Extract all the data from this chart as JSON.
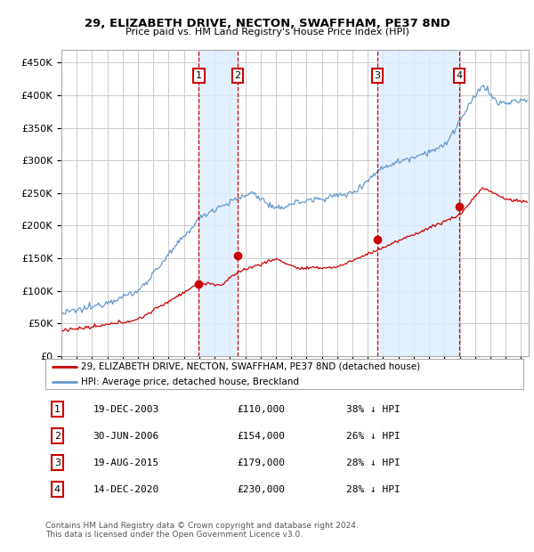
{
  "title1": "29, ELIZABETH DRIVE, NECTON, SWAFFHAM, PE37 8ND",
  "title2": "Price paid vs. HM Land Registry's House Price Index (HPI)",
  "ylabel_ticks": [
    "£0",
    "£50K",
    "£100K",
    "£150K",
    "£200K",
    "£250K",
    "£300K",
    "£350K",
    "£400K",
    "£450K"
  ],
  "ytick_vals": [
    0,
    50000,
    100000,
    150000,
    200000,
    250000,
    300000,
    350000,
    400000,
    450000
  ],
  "ylim": [
    0,
    470000
  ],
  "xlim_start": 1995.0,
  "xlim_end": 2025.5,
  "legend_line1": "29, ELIZABETH DRIVE, NECTON, SWAFFHAM, PE37 8ND (detached house)",
  "legend_line2": "HPI: Average price, detached house, Breckland",
  "transactions": [
    {
      "num": 1,
      "date": "19-DEC-2003",
      "price": 110000,
      "pct": "38%",
      "year": 2003.97
    },
    {
      "num": 2,
      "date": "30-JUN-2006",
      "price": 154000,
      "pct": "26%",
      "year": 2006.5
    },
    {
      "num": 3,
      "date": "19-AUG-2015",
      "price": 179000,
      "pct": "28%",
      "year": 2015.63
    },
    {
      "num": 4,
      "date": "14-DEC-2020",
      "price": 230000,
      "pct": "28%",
      "year": 2020.96
    }
  ],
  "footer1": "Contains HM Land Registry data © Crown copyright and database right 2024.",
  "footer2": "This data is licensed under the Open Government Licence v3.0.",
  "hpi_color": "#6699cc",
  "price_color": "#cc0000",
  "transaction_color": "#cc0000",
  "shade_color": "#ddeeff",
  "grid_color": "#cccccc",
  "background_color": "#ffffff",
  "figsize": [
    6.0,
    6.2
  ],
  "dpi": 100
}
